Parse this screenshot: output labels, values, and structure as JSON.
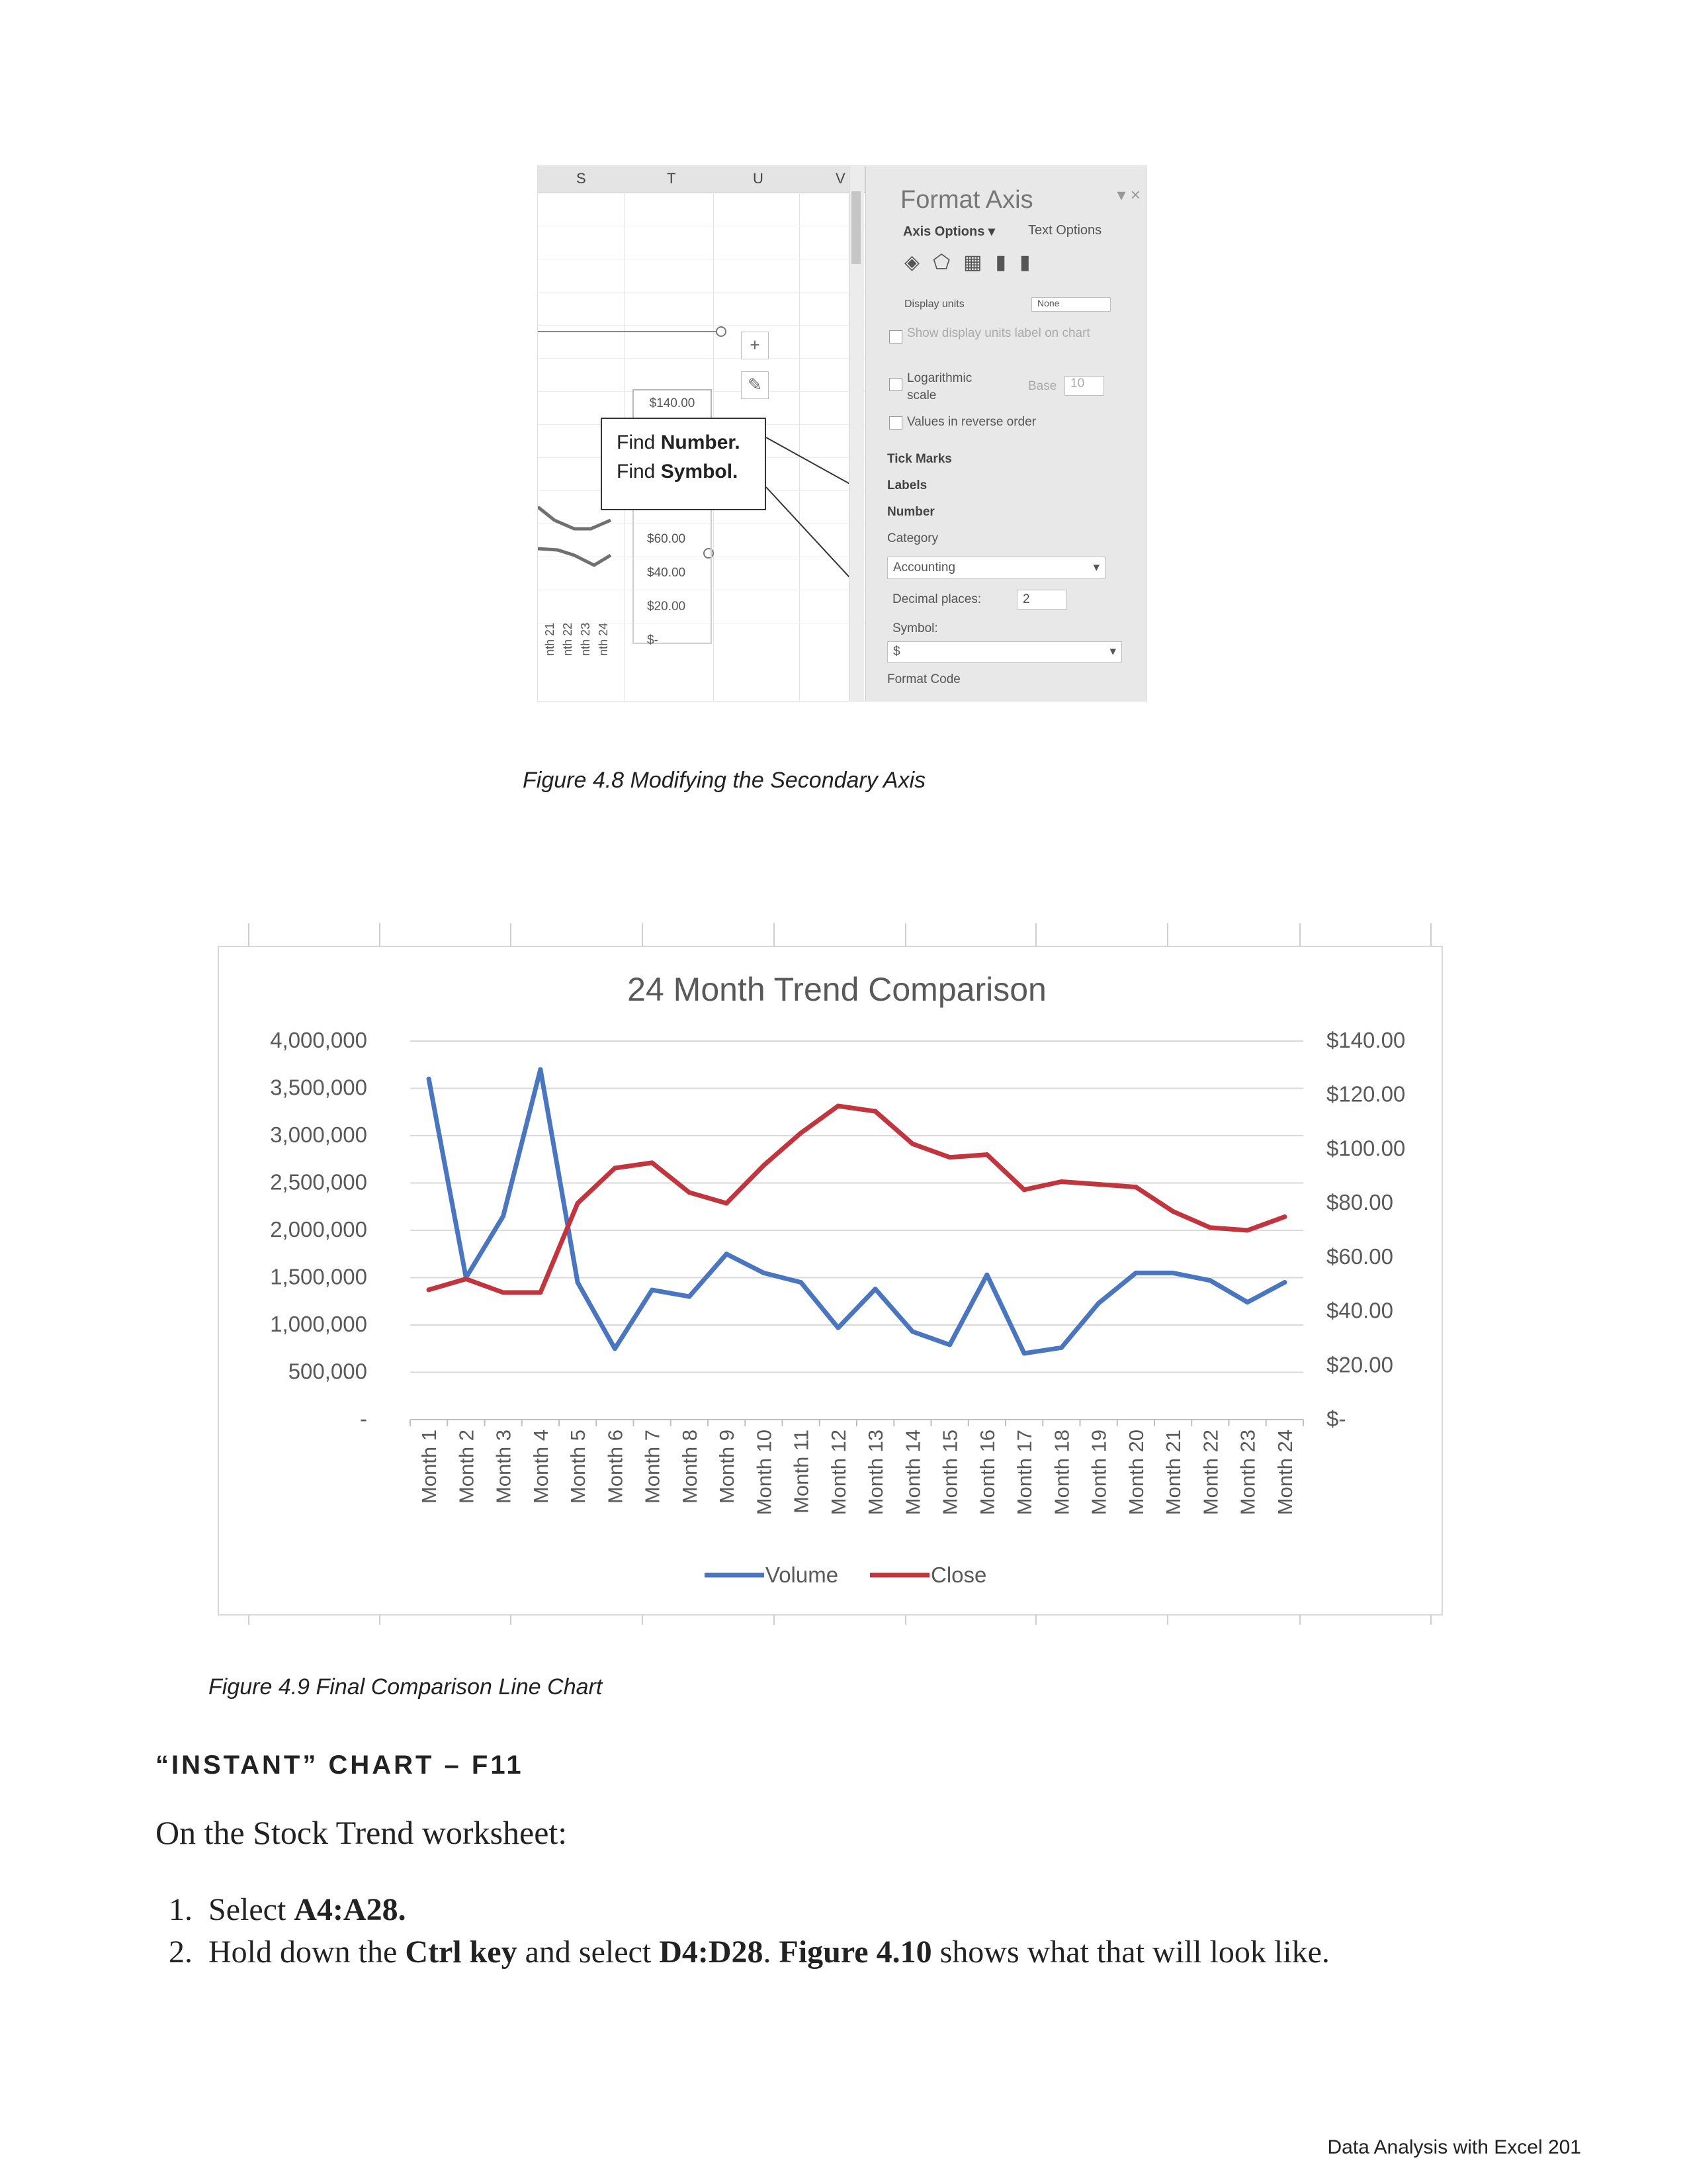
{
  "figure_4_8": {
    "columns": [
      "S",
      "T",
      "U",
      "V"
    ],
    "axis_labels": [
      "$140.00",
      "$60.00",
      "$40.00",
      "$20.00",
      "$-"
    ],
    "callout_line1_plain": "Find ",
    "callout_line1_bold": "Number.",
    "callout_line2_plain": "Find ",
    "callout_line2_bold": "Symbol.",
    "month_labels": [
      "nth 21",
      "nth 22",
      "nth 23",
      "nth 24"
    ],
    "panel": {
      "title": "Format Axis",
      "tab_axis_options": "Axis Options",
      "tab_text_options": "Text Options",
      "display_units": "Display units",
      "display_units_value": "None",
      "show_display_units": "Show display units label on chart",
      "logarithmic": "Logarithmic scale",
      "base_label": "Base",
      "base_value": "10",
      "reverse_order": "Values in reverse order",
      "tick_marks": "Tick Marks",
      "labels": "Labels",
      "number": "Number",
      "category_label": "Category",
      "category_value": "Accounting",
      "decimal_places_label": "Decimal places:",
      "decimal_places_value": "2",
      "symbol_label": "Symbol:",
      "symbol_value": "$",
      "format_code": "Format Code"
    }
  },
  "caption_4_8": "Figure 4.8 Modifying the Secondary Axis",
  "caption_4_9": "Figure 4.9 Final Comparison Line Chart",
  "chart_data": {
    "type": "line",
    "title": "24 Month Trend Comparison",
    "categories": [
      "Month 1",
      "Month 2",
      "Month 3",
      "Month 4",
      "Month 5",
      "Month 6",
      "Month 7",
      "Month 8",
      "Month 9",
      "Month 10",
      "Month 11",
      "Month 12",
      "Month 13",
      "Month 14",
      "Month 15",
      "Month 16",
      "Month 17",
      "Month 18",
      "Month 19",
      "Month 20",
      "Month 21",
      "Month 22",
      "Month 23",
      "Month 24"
    ],
    "series": [
      {
        "name": "Volume",
        "axis": "primary",
        "color": "#4a76c0",
        "values": [
          3600000,
          1500000,
          2150000,
          3700000,
          1450000,
          750000,
          1370000,
          1300000,
          1750000,
          1550000,
          1450000,
          970000,
          1380000,
          930000,
          790000,
          1530000,
          700000,
          760000,
          1230000,
          1550000,
          1550000,
          1470000,
          1240000,
          1450000
        ]
      },
      {
        "name": "Close",
        "axis": "secondary",
        "color": "#c0353e",
        "values": [
          48,
          52,
          47,
          47,
          80,
          93,
          95,
          84,
          80,
          94,
          106,
          116,
          114,
          102,
          97,
          98,
          85,
          88,
          87,
          86,
          77,
          71,
          70,
          75
        ]
      }
    ],
    "primary_axis": {
      "min": 0,
      "max": 4000000,
      "ticks": [
        "-",
        "500,000",
        "1,000,000",
        "1,500,000",
        "2,000,000",
        "2,500,000",
        "3,000,000",
        "3,500,000",
        "4,000,000"
      ]
    },
    "secondary_axis": {
      "min": 0,
      "max": 140,
      "ticks": [
        "$-",
        "$20.00",
        "$40.00",
        "$60.00",
        "$80.00",
        "$100.00",
        "$120.00",
        "$140.00"
      ]
    },
    "legend_position": "bottom",
    "grid": true
  },
  "section_heading": "“INSTANT” CHART – F11",
  "intro": "On the Stock Trend worksheet:",
  "steps": {
    "s1_num": "1.",
    "s1_a": "Select ",
    "s1_b": "A4:A28.",
    "s2_num": "2.",
    "s2_a": "Hold down the ",
    "s2_b": "Ctrl key",
    "s2_c": " and select ",
    "s2_d": "D4:D28",
    "s2_e": ". ",
    "s2_f": "Figure 4.10",
    "s2_g": " shows what that will look like."
  },
  "footer": "Data Analysis with Excel 201"
}
